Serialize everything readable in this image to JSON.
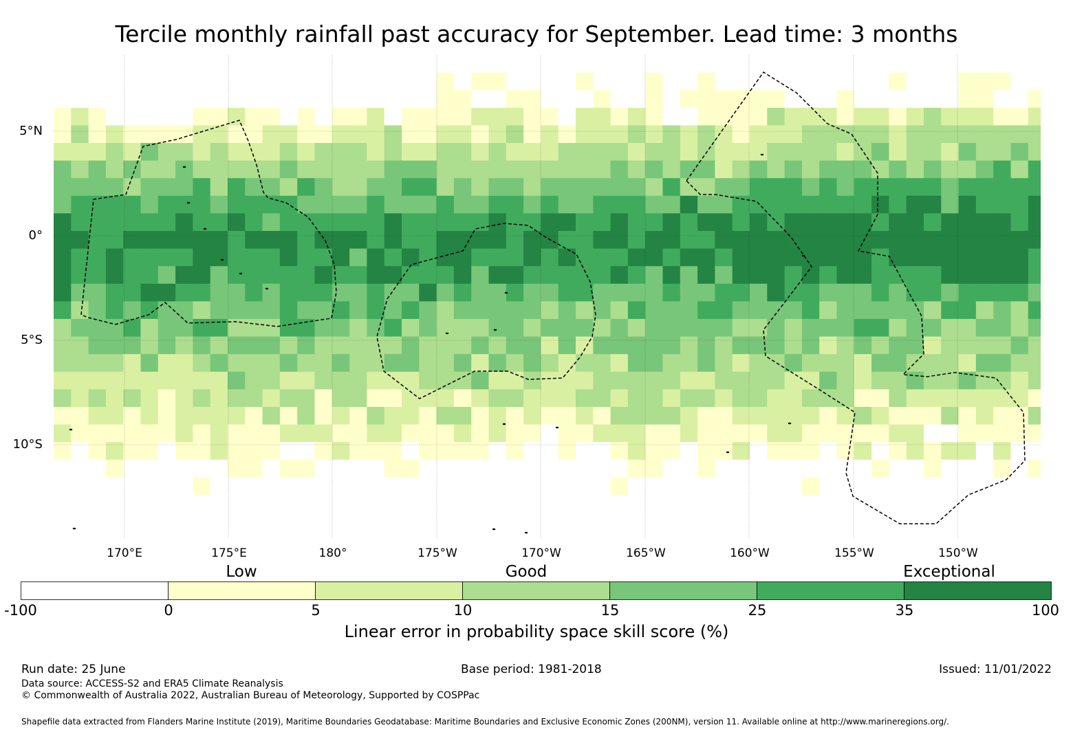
{
  "title": "Tercile monthly rainfall past accuracy for September. Lead time: 3 months",
  "map": {
    "lat_labels": [
      "5°N",
      "0°",
      "5°S",
      "10°S"
    ],
    "lon_labels": [
      "170°E",
      "175°E",
      "180°",
      "175°W",
      "170°W",
      "165°W",
      "160°W",
      "155°W",
      "150°W"
    ]
  },
  "legend": {
    "categories": [
      "Low",
      "Good",
      "Exceptional"
    ],
    "ticks": [
      "-100",
      "0",
      "5",
      "10",
      "15",
      "25",
      "35",
      "100"
    ],
    "colors": [
      "#ffffff",
      "#ffffcc",
      "#d9f0a3",
      "#addd8e",
      "#78c679",
      "#41ab5d",
      "#238443"
    ],
    "label": "Linear error in probability space skill score (%)"
  },
  "footer": {
    "run_date": "Run date: 25 June",
    "base_period": "Base period: 1981-2018",
    "issued": "Issued: 11/01/2022",
    "data_source": "Data source: ACCESS-S2 and ERA5 Climate Reanalysis",
    "copyright": "© Commonwealth of Australia 2022, Australian Bureau of Meteorology, Supported by COSPPac",
    "shapefile": "Shapefile data extracted from Flanders Marine Institute (2019), Maritime Boundaries Geodatabase: Maritime Boundaries and Exclusive Economic Zones (200NM), version 11. Available online at http://www.marineregions.org/."
  }
}
